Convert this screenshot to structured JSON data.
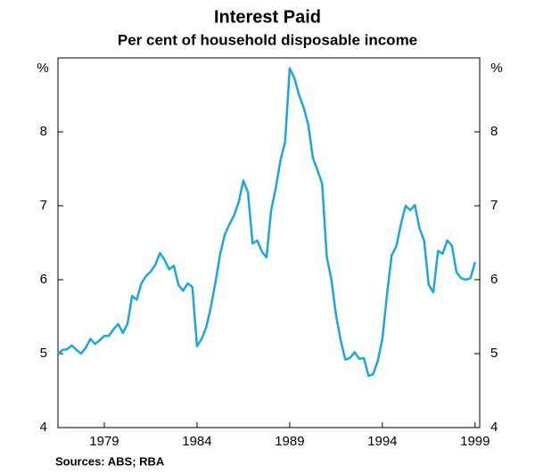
{
  "chart_data": {
    "type": "line",
    "title": "Interest Paid",
    "subtitle": "Per cent of household disposable income",
    "y_unit": "%",
    "source": "Sources: ABS; RBA",
    "x": [
      1976.5,
      1976.75,
      1977,
      1977.25,
      1977.5,
      1977.75,
      1978,
      1978.25,
      1978.5,
      1978.75,
      1979,
      1979.25,
      1979.5,
      1979.75,
      1980,
      1980.25,
      1980.5,
      1980.75,
      1981,
      1981.25,
      1981.5,
      1981.75,
      1982,
      1982.25,
      1982.5,
      1982.75,
      1983,
      1983.25,
      1983.5,
      1983.75,
      1984,
      1984.25,
      1984.5,
      1984.75,
      1985,
      1985.25,
      1985.5,
      1985.75,
      1986,
      1986.25,
      1986.5,
      1986.75,
      1987,
      1987.25,
      1987.5,
      1987.75,
      1988,
      1988.25,
      1988.5,
      1988.75,
      1989,
      1989.25,
      1989.5,
      1989.75,
      1990,
      1990.25,
      1990.5,
      1990.75,
      1991,
      1991.25,
      1991.5,
      1991.75,
      1992,
      1992.25,
      1992.5,
      1992.75,
      1993,
      1993.25,
      1993.5,
      1993.75,
      1994,
      1994.25,
      1994.5,
      1994.75,
      1995,
      1995.25,
      1995.5,
      1995.75,
      1996,
      1996.25,
      1996.5,
      1996.75,
      1997,
      1997.25,
      1997.5,
      1997.75,
      1998,
      1998.25,
      1998.5,
      1998.75,
      1999
    ],
    "series": [
      {
        "name": "Interest paid",
        "color": "#1ba6e1",
        "values": [
          5.0,
          5.05,
          5.06,
          5.11,
          5.05,
          5.0,
          5.08,
          5.2,
          5.13,
          5.18,
          5.24,
          5.24,
          5.33,
          5.4,
          5.28,
          5.4,
          5.78,
          5.73,
          5.95,
          6.05,
          6.11,
          6.2,
          6.36,
          6.27,
          6.14,
          6.19,
          5.93,
          5.85,
          5.95,
          5.9,
          5.1,
          5.2,
          5.36,
          5.63,
          5.97,
          6.35,
          6.61,
          6.75,
          6.87,
          7.05,
          7.34,
          7.18,
          6.49,
          6.53,
          6.38,
          6.3,
          6.94,
          7.24,
          7.61,
          7.86,
          8.86,
          8.73,
          8.5,
          8.33,
          8.1,
          7.65,
          7.48,
          7.3,
          6.31,
          6.0,
          5.52,
          5.18,
          4.92,
          4.94,
          5.02,
          4.93,
          4.94,
          4.7,
          4.72,
          4.9,
          5.2,
          5.8,
          6.33,
          6.45,
          6.75,
          7.0,
          6.94,
          7.01,
          6.7,
          6.53,
          5.93,
          5.83,
          6.39,
          6.35,
          6.53,
          6.46,
          6.1,
          6.02,
          6.0,
          6.02,
          6.24
        ]
      }
    ],
    "xlim": [
      1976.5,
      1999.25
    ],
    "xticks": [
      1979,
      1984,
      1989,
      1994,
      1999
    ],
    "ylim": [
      4,
      9
    ],
    "yticks": [
      4,
      5,
      6,
      7,
      8
    ],
    "grid": false
  }
}
